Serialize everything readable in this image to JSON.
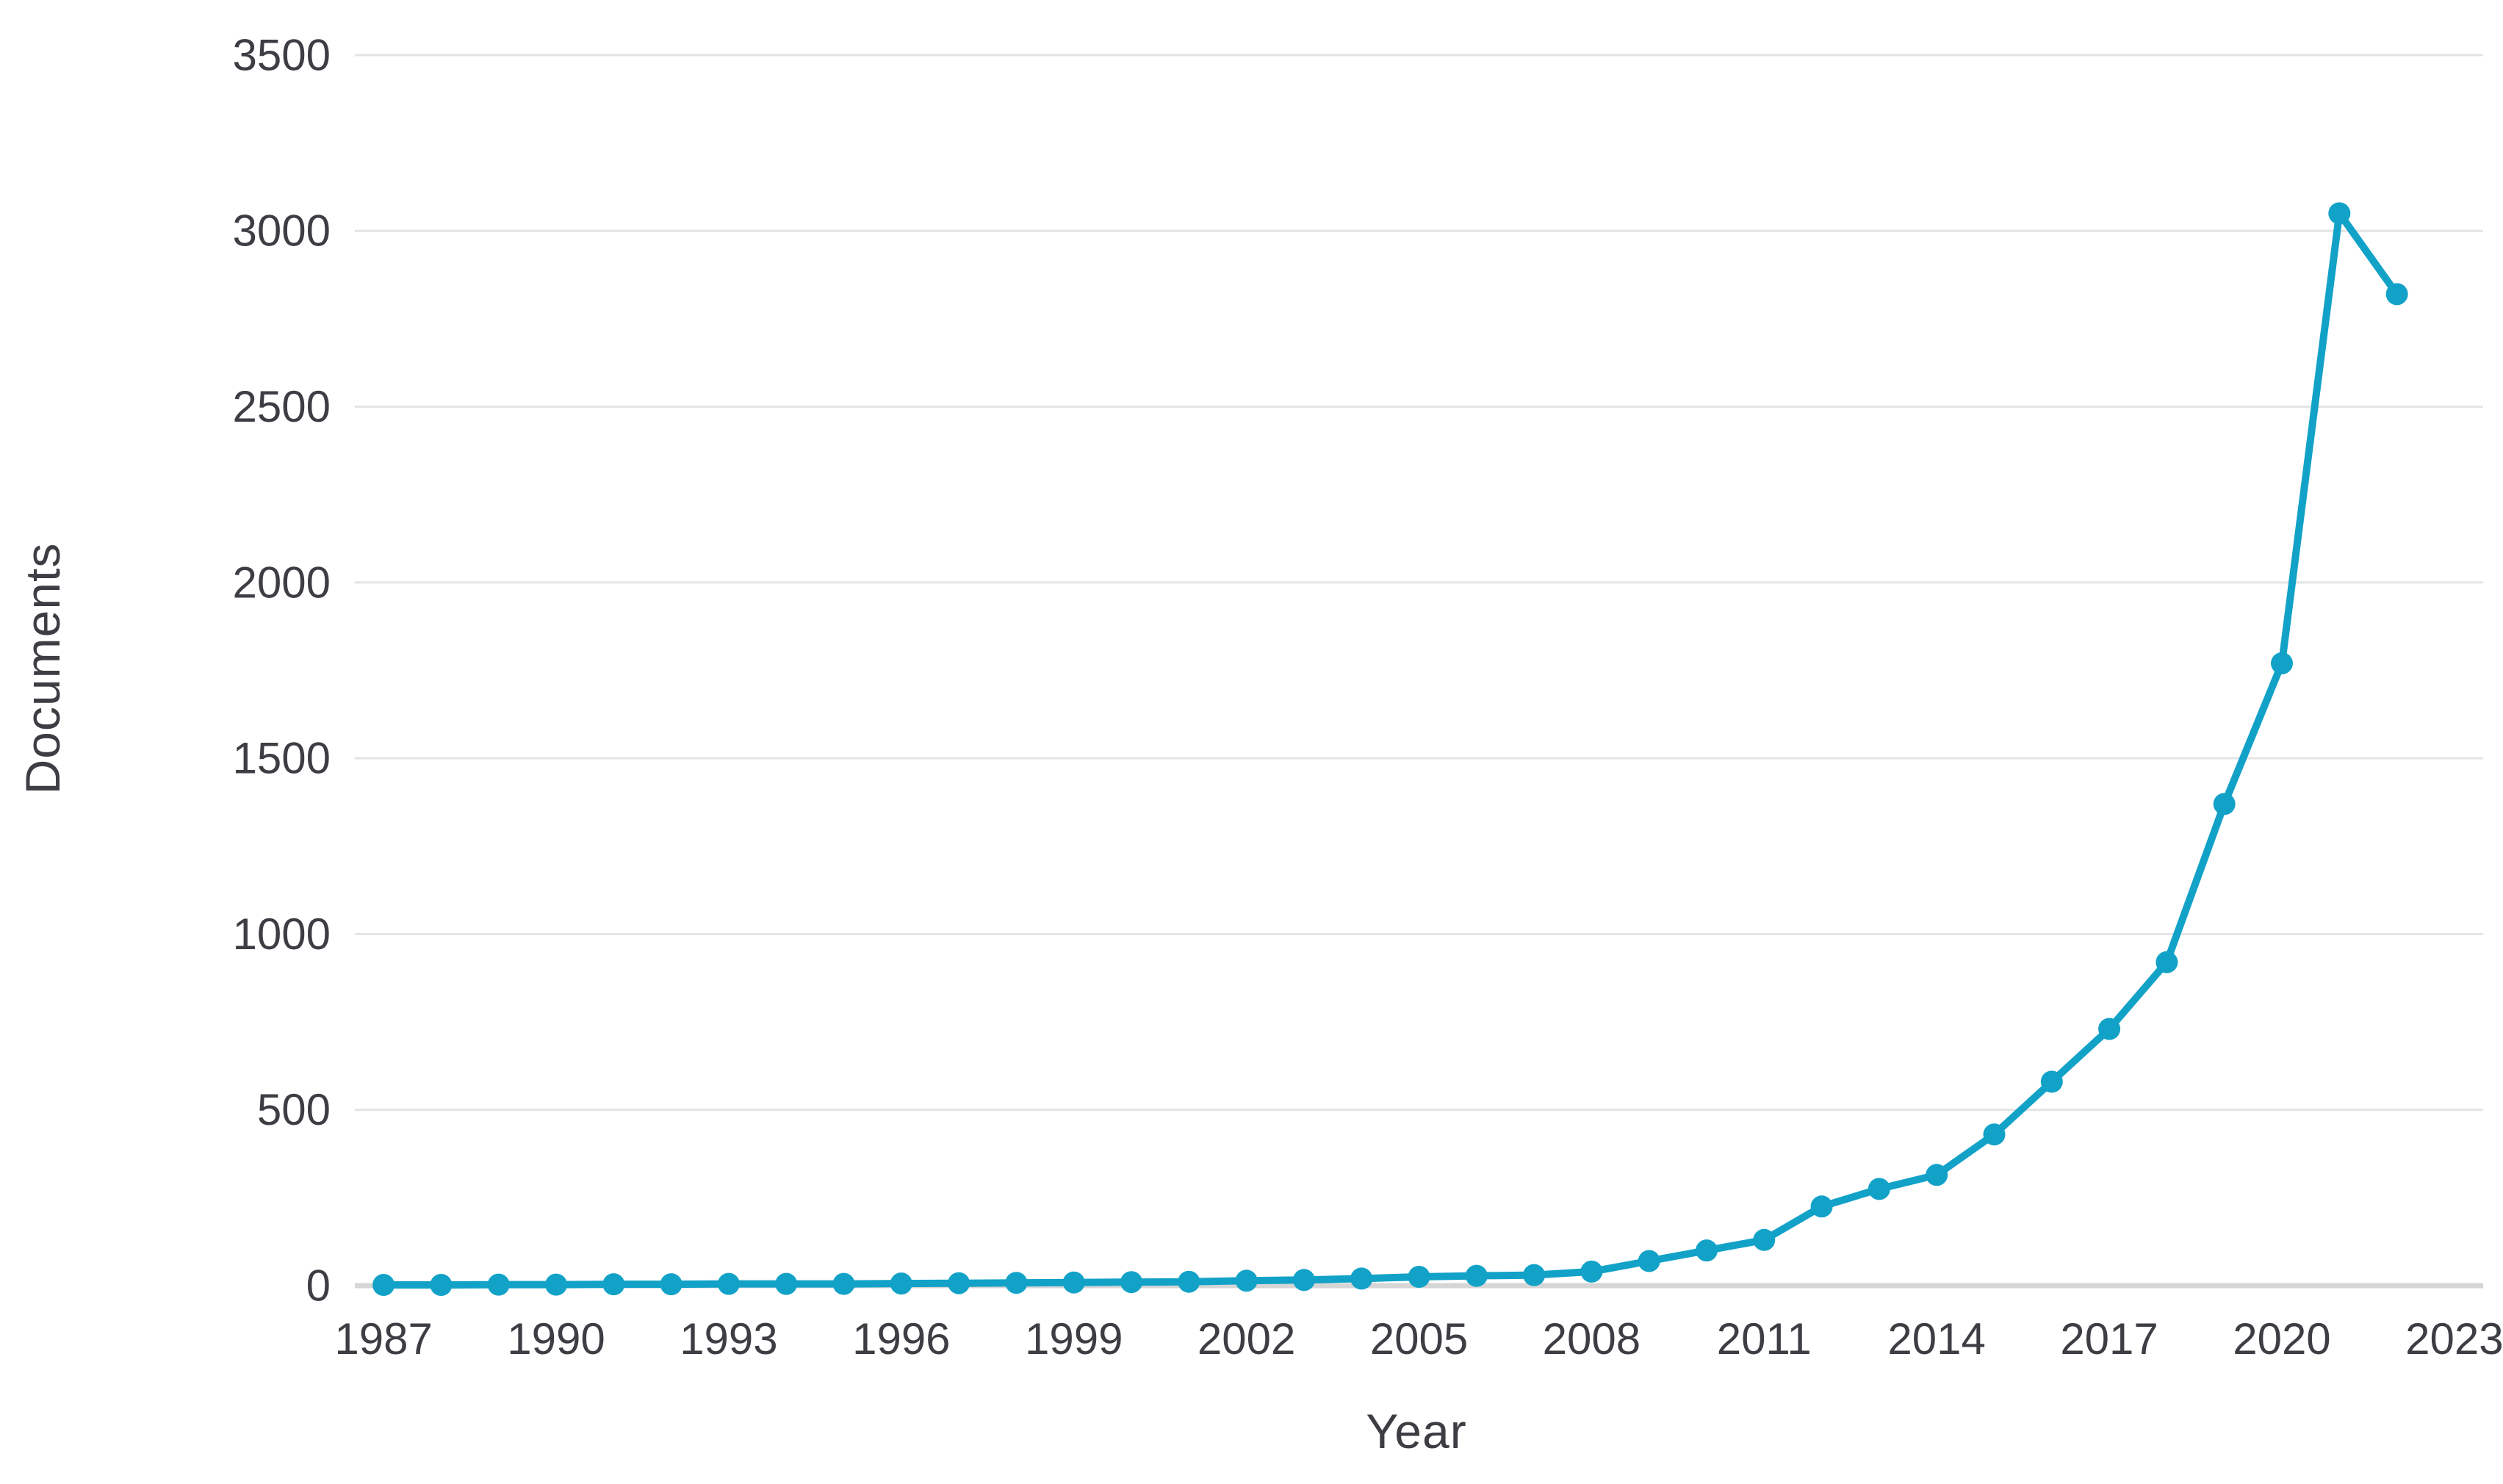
{
  "chart_data": {
    "type": "line",
    "title": "",
    "xlabel": "Year",
    "ylabel": "Documents",
    "x": [
      1987,
      1988,
      1989,
      1990,
      1991,
      1992,
      1993,
      1994,
      1995,
      1996,
      1997,
      1998,
      1999,
      2000,
      2001,
      2002,
      2003,
      2004,
      2005,
      2006,
      2007,
      2008,
      2009,
      2010,
      2011,
      2012,
      2013,
      2014,
      2015,
      2016,
      2017,
      2018,
      2019,
      2020,
      2021,
      2022
    ],
    "values": [
      2,
      2,
      3,
      3,
      4,
      4,
      5,
      5,
      5,
      6,
      7,
      8,
      9,
      10,
      11,
      14,
      16,
      20,
      25,
      28,
      30,
      40,
      70,
      100,
      130,
      225,
      275,
      315,
      430,
      580,
      730,
      920,
      1370,
      1770,
      3050,
      2820
    ],
    "x_ticks": [
      1987,
      1990,
      1993,
      1996,
      1999,
      2002,
      2005,
      2008,
      2011,
      2014,
      2017,
      2020,
      2023
    ],
    "y_ticks": [
      0,
      500,
      1000,
      1500,
      2000,
      2500,
      3000,
      3500
    ],
    "xlim": [
      1986.5,
      2023.5
    ],
    "ylim": [
      0,
      3500
    ],
    "grid": "horizontal",
    "legend": "none",
    "series_name": "Documents",
    "line_color": "#12a2c8",
    "marker_color": "#12a2c8",
    "grid_color": "#e4e4e4",
    "axis_line_color": "#d6d6d6",
    "text_color": "#3d3d44",
    "background_color": "#ffffff"
  }
}
